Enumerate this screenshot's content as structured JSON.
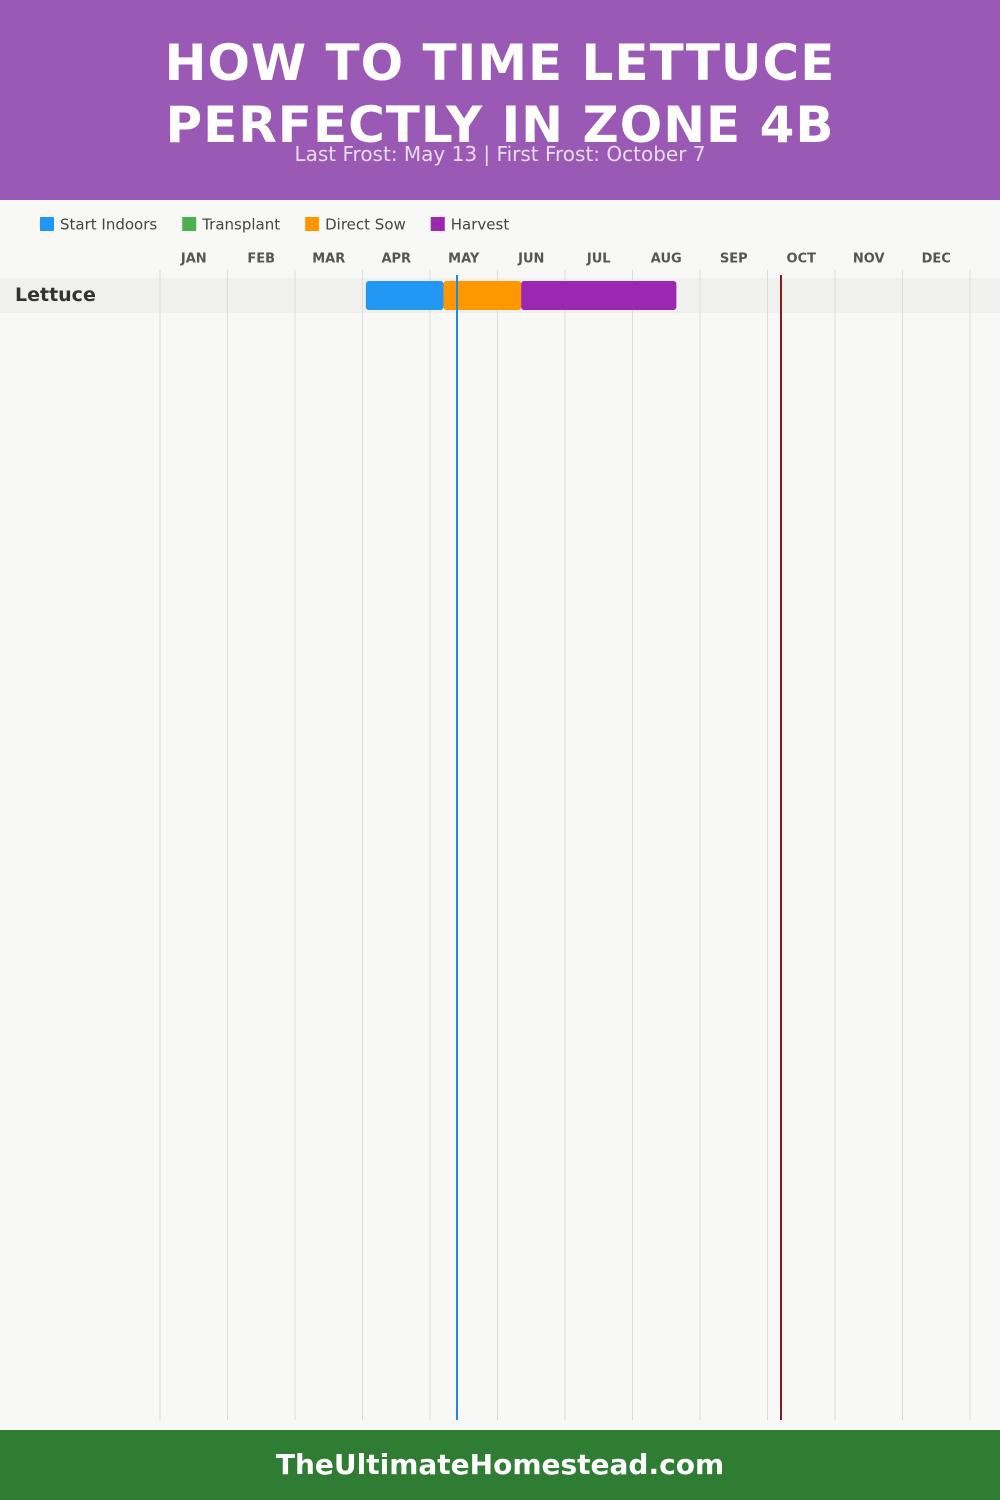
{
  "chart_data": {
    "type": "gantt",
    "title": "HOW TO TIME LETTUCE PERFECTLY IN ZONE 4B",
    "subtitle": "Last Frost: May 13 | First Frost: October 7",
    "footer": "TheUltimateHomestead.com",
    "categories": [
      "JAN",
      "FEB",
      "MAR",
      "APR",
      "MAY",
      "JUN",
      "JUL",
      "AUG",
      "SEP",
      "OCT",
      "NOV",
      "DEC"
    ],
    "xlim": [
      0,
      12
    ],
    "rows": [
      "Lettuce"
    ],
    "series": [
      {
        "name": "Start Indoors",
        "color": "#2196f3",
        "start": [
          3.05
        ],
        "end": [
          4.2
        ]
      },
      {
        "name": "Transplant",
        "color": "#4caf50",
        "start": [
          null
        ],
        "end": [
          null
        ]
      },
      {
        "name": "Direct Sow",
        "color": "#ff9800",
        "start": [
          4.2
        ],
        "end": [
          5.35
        ]
      },
      {
        "name": "Harvest",
        "color": "#9c27b0",
        "start": [
          5.35
        ],
        "end": [
          7.65
        ]
      }
    ],
    "markers": [
      {
        "x": 4.4,
        "color": "#1e88e5"
      },
      {
        "x": 9.2,
        "color": "#8b1a1a"
      }
    ],
    "grid": true
  }
}
